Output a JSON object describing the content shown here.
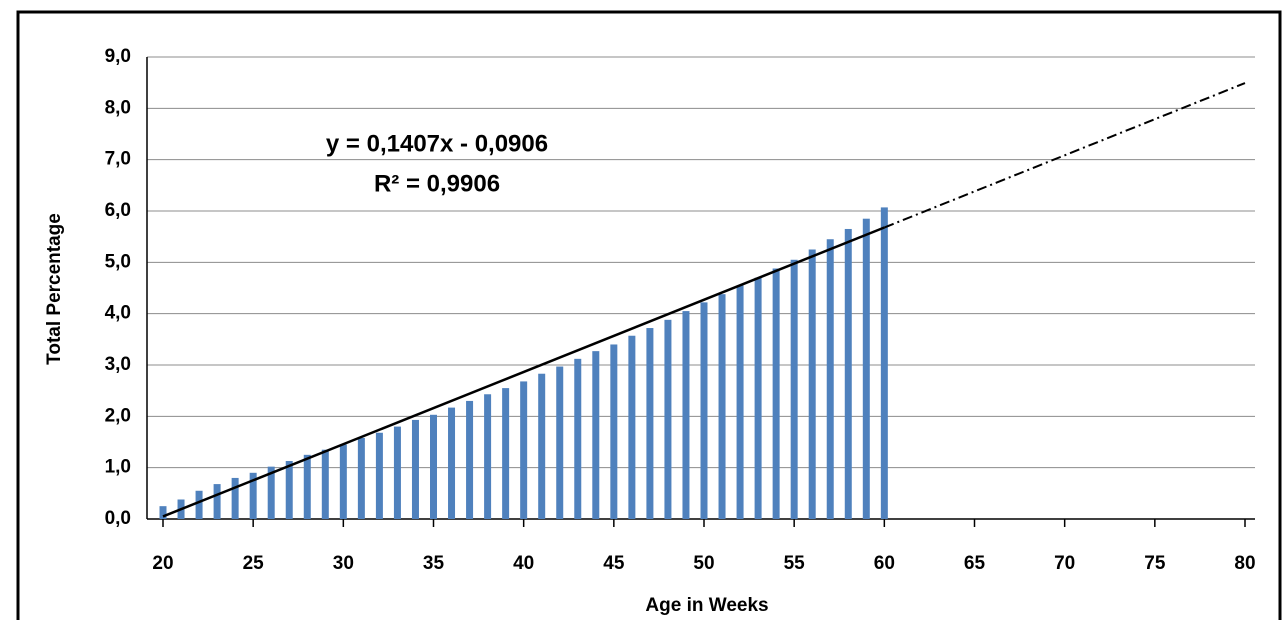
{
  "chart_data": {
    "type": "bar",
    "x_label": "Age in Weeks",
    "y_label": "Total Percentage",
    "x": [
      20,
      21,
      22,
      23,
      24,
      25,
      26,
      27,
      28,
      29,
      30,
      31,
      32,
      33,
      34,
      35,
      36,
      37,
      38,
      39,
      40,
      41,
      42,
      43,
      44,
      45,
      46,
      47,
      48,
      49,
      50,
      51,
      52,
      53,
      54,
      55,
      56,
      57,
      58,
      59,
      60
    ],
    "values": [
      0.25,
      0.38,
      0.55,
      0.68,
      0.8,
      0.9,
      1.02,
      1.13,
      1.25,
      1.35,
      1.45,
      1.58,
      1.68,
      1.8,
      1.93,
      2.03,
      2.17,
      2.3,
      2.43,
      2.55,
      2.68,
      2.83,
      2.97,
      3.12,
      3.27,
      3.4,
      3.57,
      3.72,
      3.88,
      4.05,
      4.22,
      4.38,
      4.55,
      4.7,
      4.88,
      5.05,
      5.25,
      5.45,
      5.65,
      5.85,
      6.07
    ],
    "color": "#4f81bd",
    "xlim": [
      20,
      80
    ],
    "xticks": [
      20,
      25,
      30,
      35,
      40,
      45,
      50,
      55,
      60,
      65,
      70,
      75,
      80
    ],
    "ylim": [
      0,
      9
    ],
    "yticks": [
      {
        "value": 0,
        "label": "0,0"
      },
      {
        "value": 1,
        "label": "1,0"
      },
      {
        "value": 2,
        "label": "2,0"
      },
      {
        "value": 3,
        "label": "3,0"
      },
      {
        "value": 4,
        "label": "4,0"
      },
      {
        "value": 5,
        "label": "5,0"
      },
      {
        "value": 6,
        "label": "6,0"
      },
      {
        "value": 7,
        "label": "7,0"
      },
      {
        "value": 8,
        "label": "8,0"
      },
      {
        "value": 9,
        "label": "9,0"
      }
    ],
    "grid": true,
    "trendline": {
      "slope": 0.1407,
      "intercept": -0.0906,
      "label": "y = 0,1407x - 0,0906",
      "r2_label": "R² = 0,9906"
    }
  }
}
